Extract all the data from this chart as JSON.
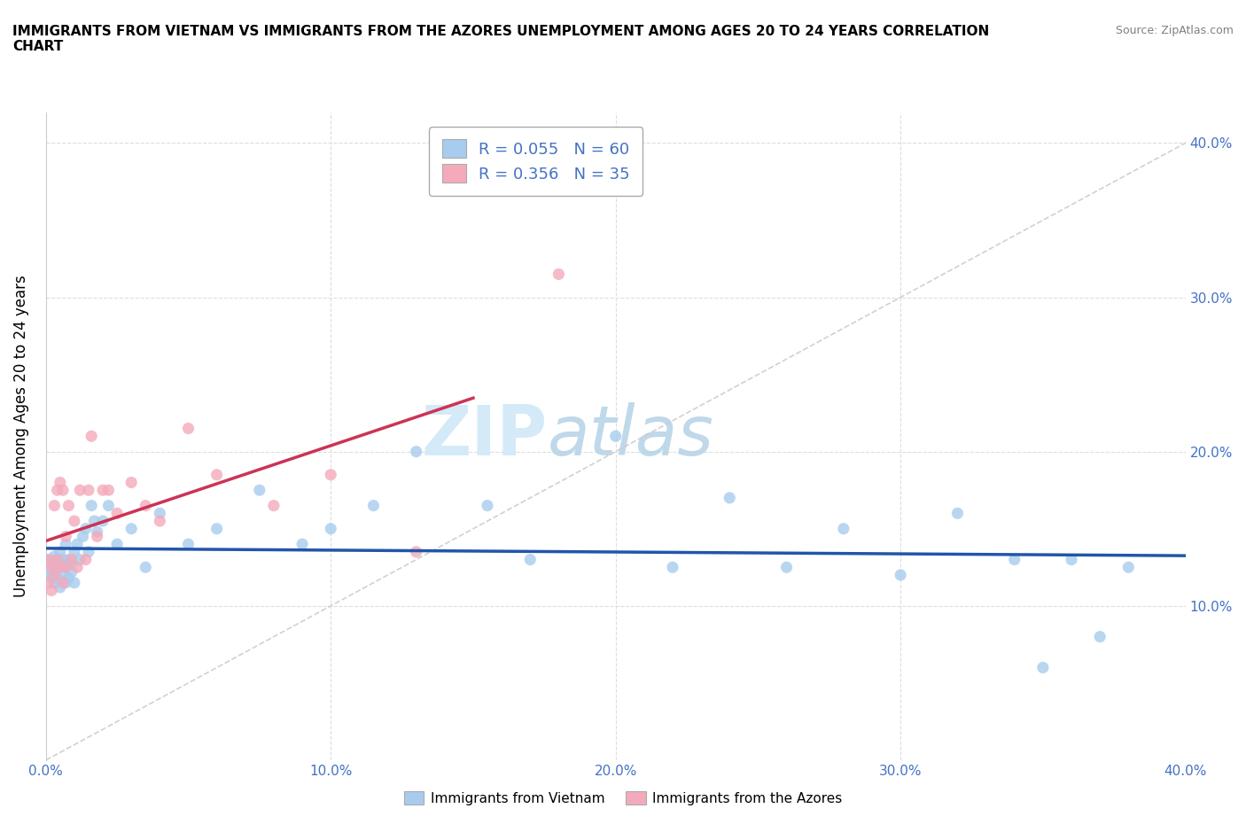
{
  "title": "IMMIGRANTS FROM VIETNAM VS IMMIGRANTS FROM THE AZORES UNEMPLOYMENT AMONG AGES 20 TO 24 YEARS CORRELATION\nCHART",
  "source_text": "Source: ZipAtlas.com",
  "ylabel": "Unemployment Among Ages 20 to 24 years",
  "xlim": [
    0.0,
    0.4
  ],
  "ylim": [
    0.0,
    0.42
  ],
  "xticks": [
    0.0,
    0.1,
    0.2,
    0.3,
    0.4
  ],
  "yticks": [
    0.1,
    0.2,
    0.3,
    0.4
  ],
  "xticklabels": [
    "0.0%",
    "10.0%",
    "20.0%",
    "30.0%",
    "40.0%"
  ],
  "yticklabels": [
    "10.0%",
    "20.0%",
    "30.0%",
    "40.0%"
  ],
  "watermark_zip": "ZIP",
  "watermark_atlas": "atlas",
  "legend_r1": "R = 0.055",
  "legend_n1": "N = 60",
  "legend_r2": "R = 0.356",
  "legend_n2": "N = 35",
  "color_vietnam": "#A8CCEE",
  "color_azores": "#F4AABB",
  "color_trend_vietnam": "#2255AA",
  "color_trend_azores": "#CC3355",
  "color_ref_line": "#CCCCCC",
  "scatter_alpha": 0.8,
  "vietnam_x": [
    0.001,
    0.001,
    0.002,
    0.002,
    0.002,
    0.003,
    0.003,
    0.003,
    0.004,
    0.004,
    0.004,
    0.005,
    0.005,
    0.005,
    0.006,
    0.006,
    0.007,
    0.007,
    0.007,
    0.008,
    0.008,
    0.009,
    0.009,
    0.01,
    0.01,
    0.011,
    0.012,
    0.013,
    0.014,
    0.015,
    0.016,
    0.017,
    0.018,
    0.02,
    0.022,
    0.025,
    0.03,
    0.035,
    0.04,
    0.05,
    0.06,
    0.075,
    0.09,
    0.1,
    0.115,
    0.13,
    0.155,
    0.17,
    0.2,
    0.22,
    0.24,
    0.26,
    0.28,
    0.3,
    0.32,
    0.34,
    0.35,
    0.36,
    0.37,
    0.38
  ],
  "vietnam_y": [
    0.125,
    0.13,
    0.12,
    0.118,
    0.128,
    0.132,
    0.115,
    0.122,
    0.125,
    0.13,
    0.118,
    0.135,
    0.112,
    0.128,
    0.12,
    0.13,
    0.125,
    0.115,
    0.14,
    0.118,
    0.13,
    0.122,
    0.128,
    0.135,
    0.115,
    0.14,
    0.13,
    0.145,
    0.15,
    0.135,
    0.165,
    0.155,
    0.148,
    0.155,
    0.165,
    0.14,
    0.15,
    0.125,
    0.16,
    0.14,
    0.15,
    0.175,
    0.14,
    0.15,
    0.165,
    0.2,
    0.165,
    0.13,
    0.21,
    0.125,
    0.17,
    0.125,
    0.15,
    0.12,
    0.16,
    0.13,
    0.06,
    0.13,
    0.08,
    0.125
  ],
  "azores_x": [
    0.001,
    0.001,
    0.002,
    0.002,
    0.003,
    0.003,
    0.004,
    0.004,
    0.005,
    0.005,
    0.006,
    0.006,
    0.007,
    0.007,
    0.008,
    0.009,
    0.01,
    0.011,
    0.012,
    0.014,
    0.015,
    0.016,
    0.018,
    0.02,
    0.022,
    0.025,
    0.03,
    0.035,
    0.04,
    0.05,
    0.06,
    0.08,
    0.1,
    0.13,
    0.18
  ],
  "azores_y": [
    0.13,
    0.115,
    0.125,
    0.11,
    0.165,
    0.12,
    0.13,
    0.175,
    0.125,
    0.18,
    0.115,
    0.175,
    0.125,
    0.145,
    0.165,
    0.13,
    0.155,
    0.125,
    0.175,
    0.13,
    0.175,
    0.21,
    0.145,
    0.175,
    0.175,
    0.16,
    0.18,
    0.165,
    0.155,
    0.215,
    0.185,
    0.165,
    0.185,
    0.135,
    0.315
  ]
}
